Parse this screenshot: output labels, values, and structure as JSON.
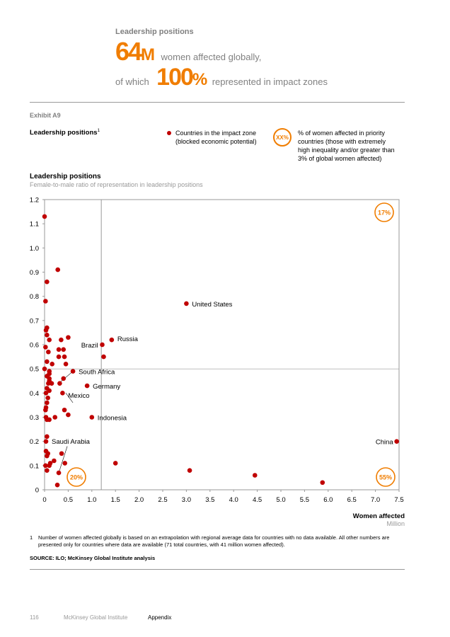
{
  "header": {
    "label": "Leadership positions",
    "stat1_value": "64",
    "stat1_unit": "M",
    "stat1_text": "women affected globally,",
    "stat2_prefix": "of which",
    "stat2_value": "100",
    "stat2_unit": "%",
    "stat2_text": "represented in impact zones"
  },
  "exhibit": {
    "label": "Exhibit A9",
    "title": "Leadership positions",
    "title_footnote_mark": "1"
  },
  "legend": {
    "dot_text_line1": "Countries in the impact zone",
    "dot_text_line2": "(blocked economic potential)",
    "circle_label": "XX%",
    "circle_text_line1": "% of women affected in priority",
    "circle_text_line2": "countries (those with extremely",
    "circle_text_line3": "high inequality and/or greater than",
    "circle_text_line4": "3% of global women affected)"
  },
  "chart_data": {
    "type": "scatter",
    "title": "Leadership positions",
    "subtitle": "Female-to-male ratio of representation in leadership positions",
    "xlabel": "Women affected",
    "xlabel_unit": "Million",
    "xlim": [
      0,
      7.5
    ],
    "ylim": [
      0,
      1.2
    ],
    "x_ticks": [
      "0",
      "0.5",
      "1.0",
      "1.5",
      "2.0",
      "2.5",
      "3.0",
      "3.5",
      "4.0",
      "4.5",
      "5.0",
      "5.5",
      "6.0",
      "6.5",
      "7.0",
      "7.5"
    ],
    "y_ticks": [
      "0",
      "0.1",
      "0.2",
      "0.3",
      "0.4",
      "0.5",
      "0.6",
      "0.7",
      "0.8",
      "0.9",
      "1.0",
      "1.1",
      "1.2"
    ],
    "x_divider": 1.2,
    "y_divider": 0.5,
    "color": "#c00000",
    "accent": "#f07d00",
    "quadrant_labels": [
      {
        "text": "17%",
        "quadrant": "top-right"
      },
      {
        "text": "20%",
        "quadrant": "bottom-left"
      },
      {
        "text": "55%",
        "quadrant": "bottom-right"
      }
    ],
    "points": [
      {
        "x": 7.45,
        "y": 0.2,
        "label": "China"
      },
      {
        "x": 3.0,
        "y": 0.77,
        "label": "United States"
      },
      {
        "x": 1.42,
        "y": 0.62,
        "label": "Russia"
      },
      {
        "x": 1.22,
        "y": 0.6,
        "label": "Brazil"
      },
      {
        "x": 0.6,
        "y": 0.49,
        "label": "South Africa"
      },
      {
        "x": 0.9,
        "y": 0.43,
        "label": "Germany"
      },
      {
        "x": 0.4,
        "y": 0.46,
        "label": "Mexico"
      },
      {
        "x": 1.0,
        "y": 0.3,
        "label": "Indonesia"
      },
      {
        "x": 0.3,
        "y": 0.07,
        "label": "Saudi Arabia"
      },
      {
        "x": 0.0,
        "y": 1.13
      },
      {
        "x": 0.28,
        "y": 0.91
      },
      {
        "x": 0.05,
        "y": 0.86
      },
      {
        "x": 0.02,
        "y": 0.78
      },
      {
        "x": 0.05,
        "y": 0.67
      },
      {
        "x": 0.03,
        "y": 0.66
      },
      {
        "x": 0.05,
        "y": 0.64
      },
      {
        "x": 0.1,
        "y": 0.62
      },
      {
        "x": 0.35,
        "y": 0.62
      },
      {
        "x": 0.5,
        "y": 0.63
      },
      {
        "x": 0.02,
        "y": 0.59
      },
      {
        "x": 0.08,
        "y": 0.57
      },
      {
        "x": 0.3,
        "y": 0.58
      },
      {
        "x": 0.4,
        "y": 0.58
      },
      {
        "x": 0.3,
        "y": 0.55
      },
      {
        "x": 0.42,
        "y": 0.55
      },
      {
        "x": 1.25,
        "y": 0.55
      },
      {
        "x": 0.05,
        "y": 0.53
      },
      {
        "x": 0.16,
        "y": 0.52
      },
      {
        "x": 0.45,
        "y": 0.52
      },
      {
        "x": 0.0,
        "y": 0.5
      },
      {
        "x": 0.1,
        "y": 0.49
      },
      {
        "x": 0.1,
        "y": 0.48
      },
      {
        "x": 0.05,
        "y": 0.47
      },
      {
        "x": 0.1,
        "y": 0.46
      },
      {
        "x": 0.1,
        "y": 0.45
      },
      {
        "x": 0.08,
        "y": 0.44
      },
      {
        "x": 0.15,
        "y": 0.44
      },
      {
        "x": 0.32,
        "y": 0.44
      },
      {
        "x": 0.05,
        "y": 0.42
      },
      {
        "x": 0.1,
        "y": 0.41
      },
      {
        "x": 0.03,
        "y": 0.4
      },
      {
        "x": 0.38,
        "y": 0.4
      },
      {
        "x": 0.07,
        "y": 0.38
      },
      {
        "x": 0.05,
        "y": 0.36
      },
      {
        "x": 0.03,
        "y": 0.34
      },
      {
        "x": 0.02,
        "y": 0.33
      },
      {
        "x": 0.42,
        "y": 0.33
      },
      {
        "x": 0.5,
        "y": 0.31
      },
      {
        "x": 0.03,
        "y": 0.3
      },
      {
        "x": 0.05,
        "y": 0.29
      },
      {
        "x": 0.1,
        "y": 0.29
      },
      {
        "x": 0.22,
        "y": 0.3
      },
      {
        "x": 0.05,
        "y": 0.22
      },
      {
        "x": 0.03,
        "y": 0.2
      },
      {
        "x": 0.03,
        "y": 0.16
      },
      {
        "x": 0.07,
        "y": 0.15
      },
      {
        "x": 0.05,
        "y": 0.14
      },
      {
        "x": 0.36,
        "y": 0.15
      },
      {
        "x": 0.2,
        "y": 0.12
      },
      {
        "x": 0.12,
        "y": 0.11
      },
      {
        "x": 0.02,
        "y": 0.1
      },
      {
        "x": 0.1,
        "y": 0.1
      },
      {
        "x": 0.43,
        "y": 0.11
      },
      {
        "x": 1.5,
        "y": 0.11
      },
      {
        "x": 0.05,
        "y": 0.08
      },
      {
        "x": 3.07,
        "y": 0.08
      },
      {
        "x": 4.45,
        "y": 0.06
      },
      {
        "x": 5.88,
        "y": 0.03
      },
      {
        "x": 0.27,
        "y": 0.02
      }
    ]
  },
  "footnote": {
    "number": "1",
    "text": "Number of women affected globally is based on an extrapolation with regional average data for countries with no data available. All other numbers are presented only for countries where data are available (71 total countries, with 41 million women affected)."
  },
  "source": "SOURCE:  ILO; McKinsey Global Institute analysis",
  "footer": {
    "page_number": "116",
    "publisher": "McKinsey Global Institute",
    "section": "Appendix"
  }
}
